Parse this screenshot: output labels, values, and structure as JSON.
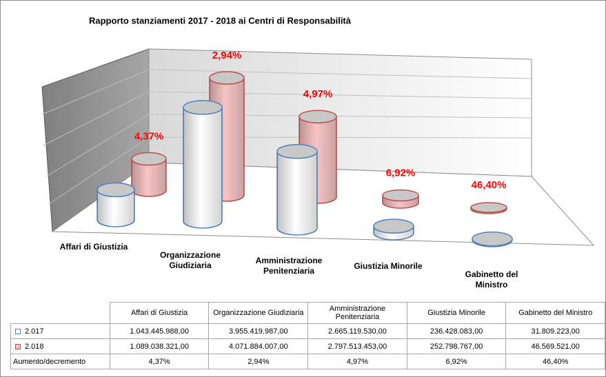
{
  "chart_data": {
    "type": "cylinder",
    "title": "Rapporto stanziamenti 2017 - 2018 ai Centri di Responsabilità",
    "categories": [
      "Affari di Giustizia",
      "Organizzazione Giudiziaria",
      "Amministrazione Penitenziaria",
      "Giustizia Minorile",
      "Gabinetto del Ministro"
    ],
    "series": [
      {
        "name": "2.017",
        "color": "#ffffff",
        "edge_color": "#4f81bd",
        "values": [
          1043445988,
          3955419987,
          2665119530,
          236428083,
          31809223
        ],
        "value_labels": [
          "1.043.445.988,00",
          "3.955.419.987,00",
          "2.665.119.530,00",
          "236.428.083,00",
          "31.809.223,00"
        ]
      },
      {
        "name": "2.018",
        "color": "#f7c4c4",
        "edge_color": "#c0504d",
        "values": [
          1089038321,
          4071884007,
          2797513453,
          252798767,
          46569521
        ],
        "value_labels": [
          "1.089.038.321,00",
          "4.071.884.007,00",
          "2.797.513.453,00",
          "252.798.767,00",
          "46.569.521,00"
        ]
      }
    ],
    "change": {
      "name": "Aumento/decremento",
      "color": "#ff0000",
      "values": [
        4.37,
        2.94,
        4.97,
        6.92,
        46.4
      ],
      "value_labels": [
        "4,37%",
        "2,94%",
        "4,97%",
        "6,92%",
        "46,40%"
      ]
    }
  }
}
